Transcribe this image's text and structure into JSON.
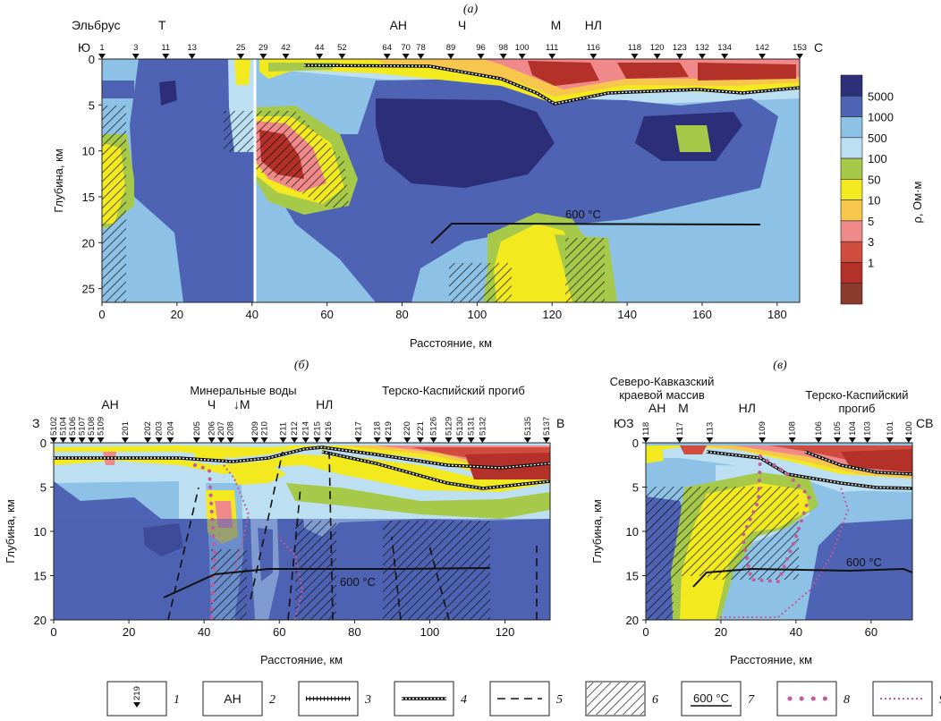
{
  "panel_a": {
    "label": "(а)",
    "top_names": [
      {
        "text": "Эльбрус",
        "x": 0
      },
      {
        "text": "Т",
        "x": 16
      },
      {
        "text": "АН",
        "x": 79
      },
      {
        "text": "Ч",
        "x": 96
      },
      {
        "text": "М",
        "x": 121
      },
      {
        "text": "НЛ",
        "x": 131
      }
    ],
    "dir_left": "Ю",
    "dir_right": "С",
    "stations": [
      {
        "id": "1",
        "x": 0
      },
      {
        "id": "3",
        "x": 9
      },
      {
        "id": "11",
        "x": 17
      },
      {
        "id": "13",
        "x": 24
      },
      {
        "id": "25",
        "x": 37
      },
      {
        "id": "29",
        "x": 43
      },
      {
        "id": "42",
        "x": 49
      },
      {
        "id": "44",
        "x": 58
      },
      {
        "id": "52",
        "x": 64
      },
      {
        "id": "64",
        "x": 76
      },
      {
        "id": "70",
        "x": 81
      },
      {
        "id": "78",
        "x": 85
      },
      {
        "id": "89",
        "x": 93
      },
      {
        "id": "96",
        "x": 101
      },
      {
        "id": "98",
        "x": 107
      },
      {
        "id": "100",
        "x": 112
      },
      {
        "id": "111",
        "x": 120
      },
      {
        "id": "116",
        "x": 131
      },
      {
        "id": "118",
        "x": 142
      },
      {
        "id": "120",
        "x": 148
      },
      {
        "id": "123",
        "x": 154
      },
      {
        "id": "132",
        "x": 160
      },
      {
        "id": "134",
        "x": 166
      },
      {
        "id": "142",
        "x": 176
      },
      {
        "id": "153",
        "x": 186
      }
    ],
    "ylabel": "Глубина, км",
    "xlabel": "Расстояние, км",
    "yticks": [
      0,
      5,
      10,
      15,
      20,
      25
    ],
    "xticks": [
      0,
      20,
      40,
      60,
      80,
      100,
      120,
      140,
      160,
      180
    ],
    "isotherm_label": "600 °С"
  },
  "legend_colorbar": {
    "title": "ρ, Ом·м",
    "labels": [
      "5000",
      "1000",
      "500",
      "100",
      "50",
      "10",
      "5",
      "3",
      "1"
    ],
    "colors": [
      "#2c2f78",
      "#4f63b4",
      "#8dc2e6",
      "#bddff2",
      "#a6c94a",
      "#f2ea1e",
      "#f6c64d",
      "#f08a8a",
      "#d04c3f",
      "#b33128",
      "#8c3a2e"
    ]
  },
  "panel_b": {
    "label": "(б)",
    "top_names": [
      {
        "text": "АН",
        "x": 15
      },
      {
        "text": "Ч",
        "x": 42
      },
      {
        "text": "↓М",
        "x": 50
      },
      {
        "text": "НЛ",
        "x": 72
      }
    ],
    "region_mid": "Минеральные воды",
    "region_right": "Терско-Каспийский прогиб",
    "dir_left": "З",
    "dir_right": "В",
    "stations": [
      {
        "id": "5102",
        "x": 0
      },
      {
        "id": "5104",
        "x": 2.5
      },
      {
        "id": "5106",
        "x": 5
      },
      {
        "id": "5107",
        "x": 7.5
      },
      {
        "id": "5108",
        "x": 10
      },
      {
        "id": "5109",
        "x": 12.5
      },
      {
        "id": "201",
        "x": 19
      },
      {
        "id": "202",
        "x": 25
      },
      {
        "id": "203",
        "x": 28
      },
      {
        "id": "204",
        "x": 31
      },
      {
        "id": "205",
        "x": 38
      },
      {
        "id": "206",
        "x": 42
      },
      {
        "id": "207",
        "x": 44.5
      },
      {
        "id": "208",
        "x": 47
      },
      {
        "id": "209",
        "x": 53.5
      },
      {
        "id": "210",
        "x": 56
      },
      {
        "id": "211",
        "x": 61
      },
      {
        "id": "212",
        "x": 64
      },
      {
        "id": "214",
        "x": 67
      },
      {
        "id": "215",
        "x": 70
      },
      {
        "id": "216",
        "x": 73
      },
      {
        "id": "217",
        "x": 81
      },
      {
        "id": "218",
        "x": 86
      },
      {
        "id": "219",
        "x": 89
      },
      {
        "id": "220",
        "x": 94
      },
      {
        "id": "221",
        "x": 97.5
      },
      {
        "id": "5126",
        "x": 101
      },
      {
        "id": "5129",
        "x": 105
      },
      {
        "id": "5130",
        "x": 108
      },
      {
        "id": "5131",
        "x": 111
      },
      {
        "id": "5132",
        "x": 114
      },
      {
        "id": "5135",
        "x": 126
      },
      {
        "id": "5137",
        "x": 131
      }
    ],
    "ylabel": "Глубина, км",
    "xlabel": "Расстояние, км",
    "yticks": [
      0,
      5,
      10,
      15,
      20
    ],
    "xticks": [
      0,
      20,
      40,
      60,
      80,
      100,
      120
    ],
    "isotherm_label": "600 °С"
  },
  "panel_c": {
    "label": "(в)",
    "region_left_line1": "Северо-Кавказский",
    "region_left_line2": "краевой массив",
    "region_right_line1": "Терско-Каспийский",
    "region_right_line2": "прогиб",
    "top_names": [
      {
        "text": "АН",
        "x": 3
      },
      {
        "text": "М",
        "x": 10
      },
      {
        "text": "НЛ",
        "x": 27
      }
    ],
    "dir_left": "ЮЗ",
    "dir_right": "СВ",
    "stations": [
      {
        "id": "118",
        "x": 0
      },
      {
        "id": "117",
        "x": 9
      },
      {
        "id": "113",
        "x": 17
      },
      {
        "id": "109",
        "x": 31
      },
      {
        "id": "108",
        "x": 39
      },
      {
        "id": "106",
        "x": 46
      },
      {
        "id": "105",
        "x": 51
      },
      {
        "id": "104",
        "x": 55
      },
      {
        "id": "103",
        "x": 59
      },
      {
        "id": "101",
        "x": 65
      },
      {
        "id": "100",
        "x": 70
      }
    ],
    "ylabel": "Глубина, км",
    "xlabel": "Расстояние, км",
    "yticks": [
      0,
      5,
      10,
      15,
      20
    ],
    "xticks": [
      0,
      20,
      40,
      60
    ],
    "isotherm_label": "600 °С"
  },
  "legend": [
    {
      "num": "1",
      "symbol": "station",
      "text": "219"
    },
    {
      "num": "2",
      "symbol": "text",
      "text": "АН"
    },
    {
      "num": "3",
      "symbol": "crossline"
    },
    {
      "num": "4",
      "symbol": "dotline"
    },
    {
      "num": "5",
      "symbol": "dash"
    },
    {
      "num": "6",
      "symbol": "hatch"
    },
    {
      "num": "7",
      "symbol": "isotherm",
      "text": "600 °С"
    },
    {
      "num": "8",
      "symbol": "bigdots"
    },
    {
      "num": "9",
      "symbol": "smalldots"
    }
  ]
}
